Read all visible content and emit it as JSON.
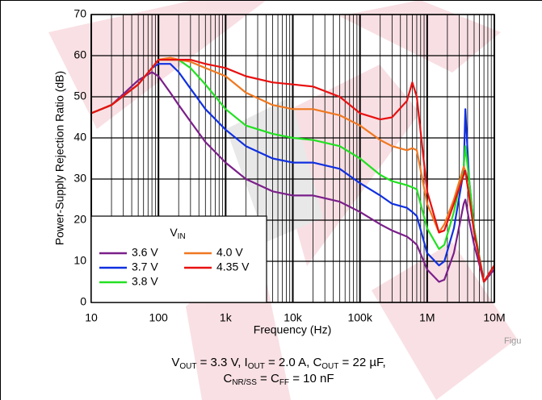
{
  "chart_data": {
    "type": "line",
    "y_label": "Power-Supply Rejection Ratio (dB)",
    "x_label": "Frequency (Hz)",
    "log_x": true,
    "grid": true,
    "minor_grid": true,
    "legend_title": [
      "V",
      "IN"
    ],
    "legend_position": "lower left",
    "x": [
      10,
      20,
      50,
      80,
      100,
      150,
      200,
      300,
      500,
      1000,
      2000,
      5000,
      10000,
      20000,
      50000,
      100000,
      200000,
      300000,
      500000,
      600000,
      700000,
      1000000,
      1500000,
      1800000,
      2500000,
      3500000,
      3700000,
      4200000,
      5000000,
      7000000,
      10000000
    ],
    "series": [
      {
        "name": "3.6 V",
        "color": "#7b1f8a",
        "values": [
          46,
          48,
          54,
          56,
          55,
          51,
          48,
          44,
          39,
          34,
          30,
          27,
          26,
          26,
          24.5,
          22,
          19,
          17.5,
          16,
          15,
          14,
          8,
          5,
          5.5,
          12,
          24,
          25,
          20,
          14,
          5,
          8
        ]
      },
      {
        "name": "3.7 V",
        "color": "#1030e0",
        "values": [
          46,
          48,
          53,
          57,
          58,
          58,
          56,
          52,
          47,
          42,
          38,
          35,
          34,
          34,
          32.5,
          29,
          26,
          24,
          23,
          22,
          21,
          12,
          9,
          10,
          18,
          32,
          47,
          30,
          18,
          5,
          9
        ]
      },
      {
        "name": "3.8 V",
        "color": "#22e022",
        "values": [
          46,
          48,
          53,
          57,
          59,
          59,
          59,
          57,
          53,
          47,
          43,
          41,
          40,
          39.5,
          38,
          35,
          31,
          29.5,
          28.5,
          28,
          27.5,
          18,
          13,
          14,
          22,
          33,
          38,
          30,
          18,
          5,
          9
        ]
      },
      {
        "name": "4.0 V",
        "color": "#f07820",
        "values": [
          46,
          48,
          53,
          57,
          59,
          59.5,
          59,
          58.5,
          57,
          55,
          51,
          48,
          47,
          47,
          45.5,
          43,
          39.5,
          38,
          37,
          37.5,
          37,
          24,
          17,
          19,
          25,
          33,
          32,
          26,
          17,
          5,
          9
        ]
      },
      {
        "name": "4.35 V",
        "color": "#e81010",
        "values": [
          46,
          48,
          53,
          57,
          59,
          59,
          59,
          59,
          58,
          57,
          55,
          53.5,
          53,
          52.5,
          50,
          46,
          44.5,
          45,
          49,
          53.5,
          50,
          27,
          17,
          17.5,
          24,
          31,
          32,
          26,
          17,
          5,
          9
        ]
      }
    ],
    "xlim": [
      10,
      10000000
    ],
    "xticks": [
      10,
      100,
      {
        "value": 1000,
        "label": "1k"
      },
      {
        "value": 10000,
        "label": "10k"
      },
      {
        "value": 100000,
        "label": "100k"
      },
      {
        "value": 1000000,
        "label": "1M"
      },
      {
        "value": 10000000,
        "label": "10M"
      }
    ],
    "ylim": [
      0,
      70
    ],
    "yticks": [
      0,
      10,
      20,
      30,
      40,
      50,
      60,
      70
    ],
    "caption_line1": [
      "V",
      "OUT",
      " = 3.3 V, I",
      "OUT",
      " = 2.0 A, C",
      "OUT",
      " = 22 µF,"
    ],
    "caption_line2": [
      "C",
      "NR/SS",
      " = C",
      "FF",
      " = 10 nF"
    ],
    "corner_note": "Figu"
  }
}
